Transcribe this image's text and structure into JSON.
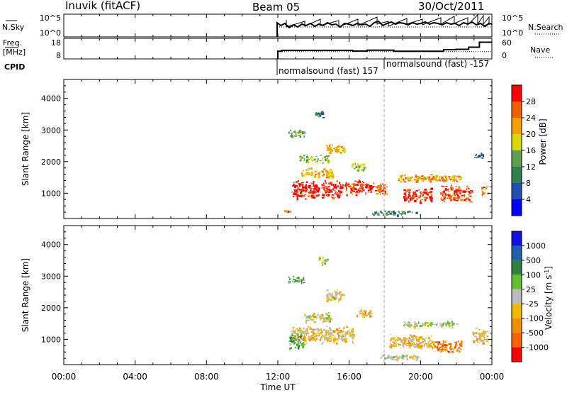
{
  "header": {
    "station": "Inuvik (fitACF)",
    "beam": "Beam 05",
    "date": "30/Oct/2011"
  },
  "top_panel": {
    "left_labels": [
      "N.Sky",
      "Freq.",
      "[MHz]",
      "CPID"
    ],
    "right_labels": [
      "N.Search",
      "Nave"
    ],
    "nsky_ticks": [
      "10^5",
      "10^0"
    ],
    "nsearch_ticks": [
      "10^5",
      "10^0"
    ],
    "freq_ticks": [
      "18",
      "8"
    ],
    "nave_ticks": [
      "60",
      "0"
    ],
    "cpid_segments": [
      {
        "label": "normalsound (fast) 157",
        "start_hour": 12.0,
        "end_hour": 18.0
      },
      {
        "label": "normalsound (fast) -157",
        "start_hour": 18.0,
        "end_hour": 24.0
      }
    ],
    "freq_series": [
      [
        12.0,
        11.5
      ],
      [
        12.2,
        12.0
      ],
      [
        14.0,
        12.0
      ],
      [
        16.2,
        11.6
      ],
      [
        17.0,
        12.1
      ],
      [
        18.0,
        12.1
      ],
      [
        18.5,
        11.5
      ],
      [
        21.0,
        11.5
      ],
      [
        21.3,
        12.4
      ],
      [
        22.0,
        12.6
      ],
      [
        22.7,
        13.8
      ],
      [
        23.3,
        16.6
      ],
      [
        24.0,
        16.6
      ]
    ],
    "nave_series": [
      [
        12.0,
        20
      ],
      [
        24.0,
        20
      ]
    ]
  },
  "chart_data": [
    {
      "type": "heatmap",
      "title": "",
      "xlabel": "",
      "ylabel": "Slant Range [km]",
      "xlim": [
        0,
        24
      ],
      "ylim": [
        200,
        4600
      ],
      "x_tick_labels": [
        "00:00",
        "04:00",
        "08:00",
        "12:00",
        "16:00",
        "20:00",
        "00:00"
      ],
      "y_tick_labels": [
        "1000",
        "2000",
        "3000",
        "4000"
      ],
      "colorbar": {
        "label": "Power [dB]",
        "ticks": [
          "28",
          "24",
          "20",
          "16",
          "12",
          "8",
          "4"
        ],
        "colors": [
          "#0000ff",
          "#2050b0",
          "#308050",
          "#5fa050",
          "#d9d900",
          "#f0a000",
          "#f06000",
          "#ff0000"
        ],
        "range": [
          0,
          32
        ]
      },
      "data_region": {
        "start_hour": 12.0,
        "end_hour": 24.0
      },
      "blobs": [
        {
          "x": 13.5,
          "y": 1100,
          "w": 1.5,
          "h": 500,
          "value": 30
        },
        {
          "x": 15.0,
          "y": 1150,
          "w": 1.2,
          "h": 400,
          "value": 29
        },
        {
          "x": 16.5,
          "y": 1200,
          "w": 1.5,
          "h": 350,
          "value": 28
        },
        {
          "x": 17.7,
          "y": 1150,
          "w": 0.8,
          "h": 300,
          "value": 26
        },
        {
          "x": 19.8,
          "y": 950,
          "w": 1.6,
          "h": 350,
          "value": 29
        },
        {
          "x": 22.0,
          "y": 1000,
          "w": 1.8,
          "h": 400,
          "value": 27
        },
        {
          "x": 23.6,
          "y": 1100,
          "w": 0.4,
          "h": 300,
          "value": 25
        },
        {
          "x": 14.2,
          "y": 1650,
          "w": 1.8,
          "h": 250,
          "value": 21
        },
        {
          "x": 15.2,
          "y": 2400,
          "w": 1.0,
          "h": 250,
          "value": 21
        },
        {
          "x": 20.5,
          "y": 1500,
          "w": 3.5,
          "h": 180,
          "value": 22
        },
        {
          "x": 14.0,
          "y": 2100,
          "w": 1.6,
          "h": 200,
          "value": 15
        },
        {
          "x": 13.0,
          "y": 2900,
          "w": 0.9,
          "h": 200,
          "value": 13
        },
        {
          "x": 14.3,
          "y": 3500,
          "w": 0.5,
          "h": 200,
          "value": 10
        },
        {
          "x": 23.2,
          "y": 2200,
          "w": 0.6,
          "h": 150,
          "value": 7
        },
        {
          "x": 18.5,
          "y": 400,
          "w": 2.5,
          "h": 120,
          "value": 11
        },
        {
          "x": 12.5,
          "y": 420,
          "w": 0.4,
          "h": 100,
          "value": 26
        },
        {
          "x": 16.5,
          "y": 1850,
          "w": 0.8,
          "h": 200,
          "value": 16
        }
      ]
    },
    {
      "type": "heatmap",
      "title": "",
      "xlabel": "Time UT",
      "ylabel": "Slant Range [km]",
      "xlim": [
        0,
        24
      ],
      "ylim": [
        200,
        4600
      ],
      "x_tick_labels": [
        "00:00",
        "04:00",
        "08:00",
        "12:00",
        "16:00",
        "20:00",
        "00:00"
      ],
      "y_tick_labels": [
        "1000",
        "2000",
        "3000",
        "4000"
      ],
      "colorbar": {
        "label": "Velocity [m s^-1]",
        "ticks": [
          "1000",
          "500",
          "100",
          "25",
          "-25",
          "-100",
          "-500",
          "-1000"
        ],
        "colors": [
          "#ff0000",
          "#ff6000",
          "#f09000",
          "#f0b800",
          "#bbbbbb",
          "#60c030",
          "#308040",
          "#2060b0",
          "#1010e0"
        ],
        "range": [
          -1200,
          1200
        ]
      },
      "data_region": {
        "start_hour": 12.0,
        "end_hour": 24.0
      },
      "blobs": [
        {
          "x": 14.5,
          "y": 1150,
          "w": 3.5,
          "h": 450,
          "value": -250
        },
        {
          "x": 13.0,
          "y": 1000,
          "w": 0.8,
          "h": 400,
          "value": 350
        },
        {
          "x": 19.5,
          "y": 950,
          "w": 2.5,
          "h": 350,
          "value": -300
        },
        {
          "x": 21.5,
          "y": 800,
          "w": 1.5,
          "h": 300,
          "value": -700
        },
        {
          "x": 23.3,
          "y": 1100,
          "w": 0.8,
          "h": 400,
          "value": -200
        },
        {
          "x": 14.2,
          "y": 1700,
          "w": 1.5,
          "h": 250,
          "value": 0
        },
        {
          "x": 15.2,
          "y": 2400,
          "w": 1.0,
          "h": 300,
          "value": -150
        },
        {
          "x": 20.5,
          "y": 1500,
          "w": 3.0,
          "h": 150,
          "value": 60
        },
        {
          "x": 13.0,
          "y": 2900,
          "w": 0.9,
          "h": 200,
          "value": 300
        },
        {
          "x": 14.5,
          "y": 3500,
          "w": 0.5,
          "h": 200,
          "value": 60
        },
        {
          "x": 18.8,
          "y": 450,
          "w": 2.2,
          "h": 150,
          "value": 60
        },
        {
          "x": 16.8,
          "y": 1850,
          "w": 0.8,
          "h": 200,
          "value": -300
        }
      ]
    }
  ]
}
